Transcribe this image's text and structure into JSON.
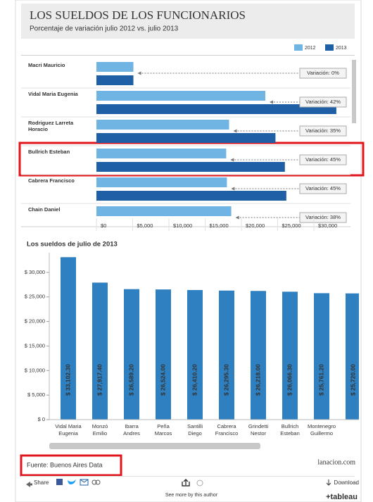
{
  "header": {
    "title": "LOS SUELDOS DE LOS FUNCIONARIOS",
    "subtitle": "Porcentaje de variación julio 2012 vs. julio 2013"
  },
  "chart_data": [
    {
      "type": "hbar",
      "categories": [
        [
          "Macri Mauricio"
        ],
        [
          "Vidal Maria Eugenia"
        ],
        [
          "Rodriguez Larreta",
          "Horacio"
        ],
        [
          "Bullrich Esteban"
        ],
        [
          "Cabrera Francisco"
        ],
        [
          "Chain Daniel"
        ]
      ],
      "series": [
        {
          "name": "2012",
          "color": "#6fb4e3",
          "values": [
            5100,
            23300,
            18300,
            17900,
            18000,
            18600
          ]
        },
        {
          "name": "2013",
          "color": "#1f5fa6",
          "values": [
            5100,
            33100,
            24700,
            26000,
            26200,
            null
          ]
        }
      ],
      "annotations": [
        "Variación: 0%",
        "Variación: 42%",
        "Variación: 35%",
        "Variación: 45%",
        "Variación: 45%",
        "Variación: 38%"
      ],
      "xlim": [
        0,
        35000
      ],
      "xticks": [
        {
          "value": 0,
          "label": "$0"
        },
        {
          "value": 5000,
          "label": "$5,000"
        },
        {
          "value": 10000,
          "label": "$10,000"
        },
        {
          "value": 15000,
          "label": "$15,000"
        },
        {
          "value": 20000,
          "label": "$20,000"
        },
        {
          "value": 25000,
          "label": "$25,000"
        },
        {
          "value": 30000,
          "label": "$30,000"
        }
      ],
      "legend": "top-right"
    },
    {
      "type": "bar",
      "title": "Los sueldos de julio de 2013",
      "categories": [
        [
          "Vidal Maria",
          "Eugenia"
        ],
        [
          "Monzó",
          "Emilio"
        ],
        [
          "Ibarra",
          "Andres"
        ],
        [
          "Peña",
          "Marcos"
        ],
        [
          "Santilli",
          "Diego"
        ],
        [
          "Cabrera",
          "Francisco"
        ],
        [
          "Grindetti",
          "Nestor"
        ],
        [
          "Bullrich",
          "Esteban"
        ],
        [
          "Montenegro",
          "Guillermo"
        ],
        []
      ],
      "values": [
        33102.3,
        27917.4,
        26589.2,
        26524.0,
        26410.2,
        26295.3,
        26218.0,
        26066.3,
        25761.2,
        25720.0
      ],
      "value_labels": [
        "$ 33,102.30",
        "$ 27,917.40",
        "$ 26,589.20",
        "$ 26,524.00",
        "$ 26,410.20",
        "$ 26,295.30",
        "$ 26,218.00",
        "$ 26,066.30",
        "$ 25,761.20",
        "$ 25,720.00"
      ],
      "color": "#2f80c0",
      "ylim": [
        0,
        34000
      ],
      "yticks": [
        {
          "value": 0,
          "label": "$ 0"
        },
        {
          "value": 5000,
          "label": "$ 5,000"
        },
        {
          "value": 10000,
          "label": "$ 10,000"
        },
        {
          "value": 15000,
          "label": "$ 15,000"
        },
        {
          "value": 20000,
          "label": "$ 20,000"
        },
        {
          "value": 25000,
          "label": "$ 25,000"
        },
        {
          "value": 30000,
          "label": "$ 30,000"
        }
      ]
    }
  ],
  "footer": {
    "source": "Fuente: Buenos Aires Data",
    "brand": "lanacion.com",
    "share": "Share",
    "download": "Download",
    "more": "See more by this author",
    "logo": "+tableau"
  }
}
